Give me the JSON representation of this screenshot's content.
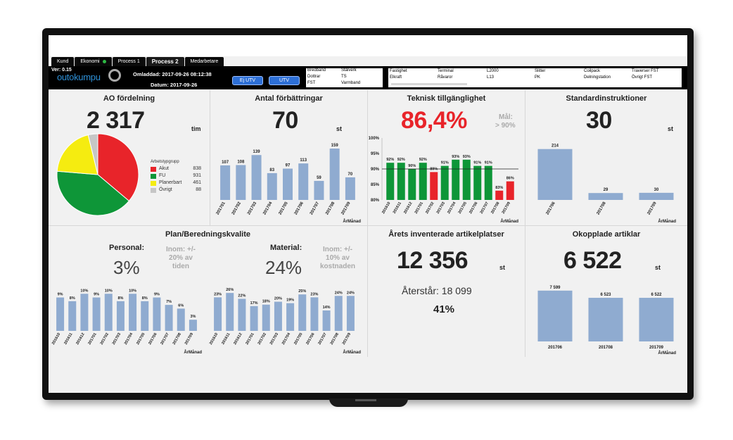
{
  "tabs": [
    {
      "label": "Kund",
      "active": false
    },
    {
      "label": "Ekonomi",
      "active": false,
      "status": "green"
    },
    {
      "label": "Process 1",
      "active": false
    },
    {
      "label": "Process 2",
      "active": true
    },
    {
      "label": "Medarbetare",
      "active": false
    }
  ],
  "header": {
    "version": "Ver: 0.15",
    "logo": "outokumpu",
    "loaded": "Omladdad: 2017-09-26 08:12:38",
    "date": "Datum: 2017-09-26",
    "btn_ej_utv": "Ej UTV",
    "btn_utv": "UTV",
    "list1": [
      "Bredband",
      "Stålverk",
      "Dottrar",
      "TS",
      "FST",
      "Varmband"
    ],
    "list2": [
      "Fastighet",
      "Terminal",
      "L2000",
      "Slitter",
      "Coilpack",
      "Traverser FST",
      "Elkraft",
      "Råvaror",
      "L13",
      "PK",
      "Delningstation",
      "Övrigt FST"
    ]
  },
  "ao": {
    "title": "AO fördelning",
    "value": "2 317",
    "unit": "tim",
    "legend_title": "Arbetstypgrupp",
    "colors": [
      "#e8242a",
      "#0e9638",
      "#f5ec10",
      "#c6c6c6"
    ],
    "chart_data": {
      "type": "pie",
      "labels": [
        "Akut",
        "FU",
        "Planerbart",
        "Övrigt"
      ],
      "values": [
        838,
        931,
        461,
        88
      ]
    }
  },
  "fb": {
    "title": "Antal förbättringar",
    "value": "70",
    "unit": "st",
    "xlabel": "ÅrMånad",
    "chart_data": {
      "type": "bar",
      "categories": [
        "201701",
        "201702",
        "201703",
        "201704",
        "201705",
        "201706",
        "201707",
        "201708",
        "201709"
      ],
      "values": [
        107,
        108,
        139,
        83,
        97,
        113,
        59,
        159,
        70
      ],
      "labels": [
        "107",
        "108",
        "139",
        "83",
        "97",
        "113",
        "59",
        "159",
        "70"
      ]
    }
  },
  "tt": {
    "title": "Teknisk tillgänglighet",
    "value": "86,4%",
    "goal_label": "Mål:",
    "goal_value": "> 90%",
    "xlabel": "ÅrMånad",
    "colors": {
      "ok": "#0e9638",
      "bad": "#e8242a"
    },
    "chart_data": {
      "type": "bar",
      "categories": [
        "201610",
        "201611",
        "201612",
        "201701",
        "201702",
        "201703",
        "201704",
        "201705",
        "201706",
        "201707",
        "201708",
        "201709"
      ],
      "values": [
        92,
        92,
        90,
        92,
        89,
        91,
        93,
        93,
        91,
        91,
        83,
        86
      ],
      "labels": [
        "92%",
        "92%",
        "90%",
        "92%",
        "89%",
        "91%",
        "93%",
        "93%",
        "91%",
        "91%",
        "83%",
        "86%"
      ],
      "goal": 90,
      "ylim": [
        80,
        100
      ],
      "yticks": [
        "80%",
        "85%",
        "90%",
        "95%",
        "100%"
      ]
    }
  },
  "si": {
    "title": "Standardinstruktioner",
    "value": "30",
    "unit": "st",
    "xlabel": "ÅrMånad",
    "chart_data": {
      "type": "bar",
      "categories": [
        "201706",
        "201708",
        "201709"
      ],
      "values": [
        214,
        29,
        30
      ],
      "labels": [
        "214",
        "29",
        "30"
      ]
    }
  },
  "plan": {
    "title": "Plan/Beredningskvalite",
    "personal_label": "Personal:",
    "personal_value": "3%",
    "personal_goal": [
      "Inom: +/-",
      "20% av",
      "tiden"
    ],
    "material_label": "Material:",
    "material_value": "24%",
    "material_goal": [
      "Inom: +/-",
      "10% av",
      "kostnaden"
    ],
    "xlabel": "ÅrMånad",
    "chart_data": [
      {
        "type": "bar",
        "name": "Personal",
        "categories": [
          "201610",
          "201611",
          "201612",
          "201701",
          "201702",
          "201703",
          "201704",
          "201705",
          "201706",
          "201707",
          "201708",
          "201709"
        ],
        "values": [
          9,
          8,
          10,
          9,
          10,
          8,
          10,
          8,
          9,
          7,
          6,
          3
        ],
        "labels": [
          "9%",
          "8%",
          "10%",
          "9%",
          "10%",
          "8%",
          "10%",
          "8%",
          "9%",
          "7%",
          "6%",
          "3%"
        ]
      },
      {
        "type": "bar",
        "name": "Material",
        "categories": [
          "201610",
          "201611",
          "201612",
          "201701",
          "201702",
          "201703",
          "201704",
          "201705",
          "201706",
          "201707",
          "201708",
          "201709"
        ],
        "values": [
          23,
          26,
          22,
          17,
          18,
          20,
          19,
          25,
          23,
          14,
          24,
          24
        ],
        "labels": [
          "23%",
          "26%",
          "22%",
          "17%",
          "18%",
          "20%",
          "19%",
          "25%",
          "23%",
          "14%",
          "24%",
          "24%"
        ]
      }
    ]
  },
  "inv": {
    "title": "Årets inventerade artikelplatser",
    "value": "12 356",
    "unit": "st",
    "remaining": "Återstår: 18 099",
    "pct": "41%"
  },
  "oko": {
    "title": "Okopplade artiklar",
    "value": "6 522",
    "unit": "st",
    "xlabel": "ÅrMånad",
    "chart_data": {
      "type": "bar",
      "categories": [
        "201706",
        "201708",
        "201709"
      ],
      "values": [
        7599,
        6523,
        6522
      ],
      "labels": [
        "7 599",
        "6 523",
        "6 522"
      ]
    }
  }
}
